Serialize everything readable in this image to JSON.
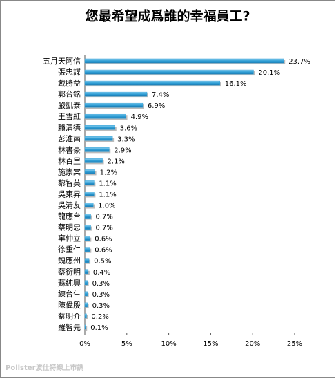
{
  "chart_data": {
    "type": "bar",
    "orientation": "horizontal",
    "title": "您最希望成爲誰的幸福員工?",
    "categories": [
      "五月天阿信",
      "張忠謀",
      "戴勝益",
      "郭台銘",
      "嚴凱泰",
      "王雪紅",
      "賴清德",
      "彭淮南",
      "林書豪",
      "林百里",
      "施崇棠",
      "黎智英",
      "吳東昇",
      "吳清友",
      "龍應台",
      "蔡明忠",
      "辜仲立",
      "徐重仁",
      "魏應州",
      "蔡衍明",
      "蘇純興",
      "練台生",
      "陳偉殷",
      "蔡明介",
      "羅智先"
    ],
    "values": [
      23.7,
      20.1,
      16.1,
      7.4,
      6.9,
      4.9,
      3.6,
      3.3,
      2.9,
      2.1,
      1.2,
      1.1,
      1.1,
      1.0,
      0.7,
      0.7,
      0.6,
      0.6,
      0.5,
      0.4,
      0.3,
      0.3,
      0.3,
      0.2,
      0.1
    ],
    "value_labels": [
      "23.7%",
      "20.1%",
      "16.1%",
      "7.4%",
      "6.9%",
      "4.9%",
      "3.6%",
      "3.3%",
      "2.9%",
      "2.1%",
      "1.2%",
      "1.1%",
      "1.1%",
      "1.0%",
      "0.7%",
      "0.7%",
      "0.6%",
      "0.6%",
      "0.5%",
      "0.4%",
      "0.3%",
      "0.3%",
      "0.3%",
      "0.2%",
      "0.1%"
    ],
    "color": "#2f9fd6",
    "xlim": [
      0,
      25
    ],
    "xticks": [
      {
        "value": 0,
        "label": "0%"
      },
      {
        "value": 5,
        "label": "5%"
      },
      {
        "value": 10,
        "label": "10%"
      },
      {
        "value": 15,
        "label": "15%"
      },
      {
        "value": 20,
        "label": "20%"
      },
      {
        "value": 25,
        "label": "25%"
      }
    ],
    "grid": false,
    "watermark": "Pollster波仕特線上市調"
  }
}
